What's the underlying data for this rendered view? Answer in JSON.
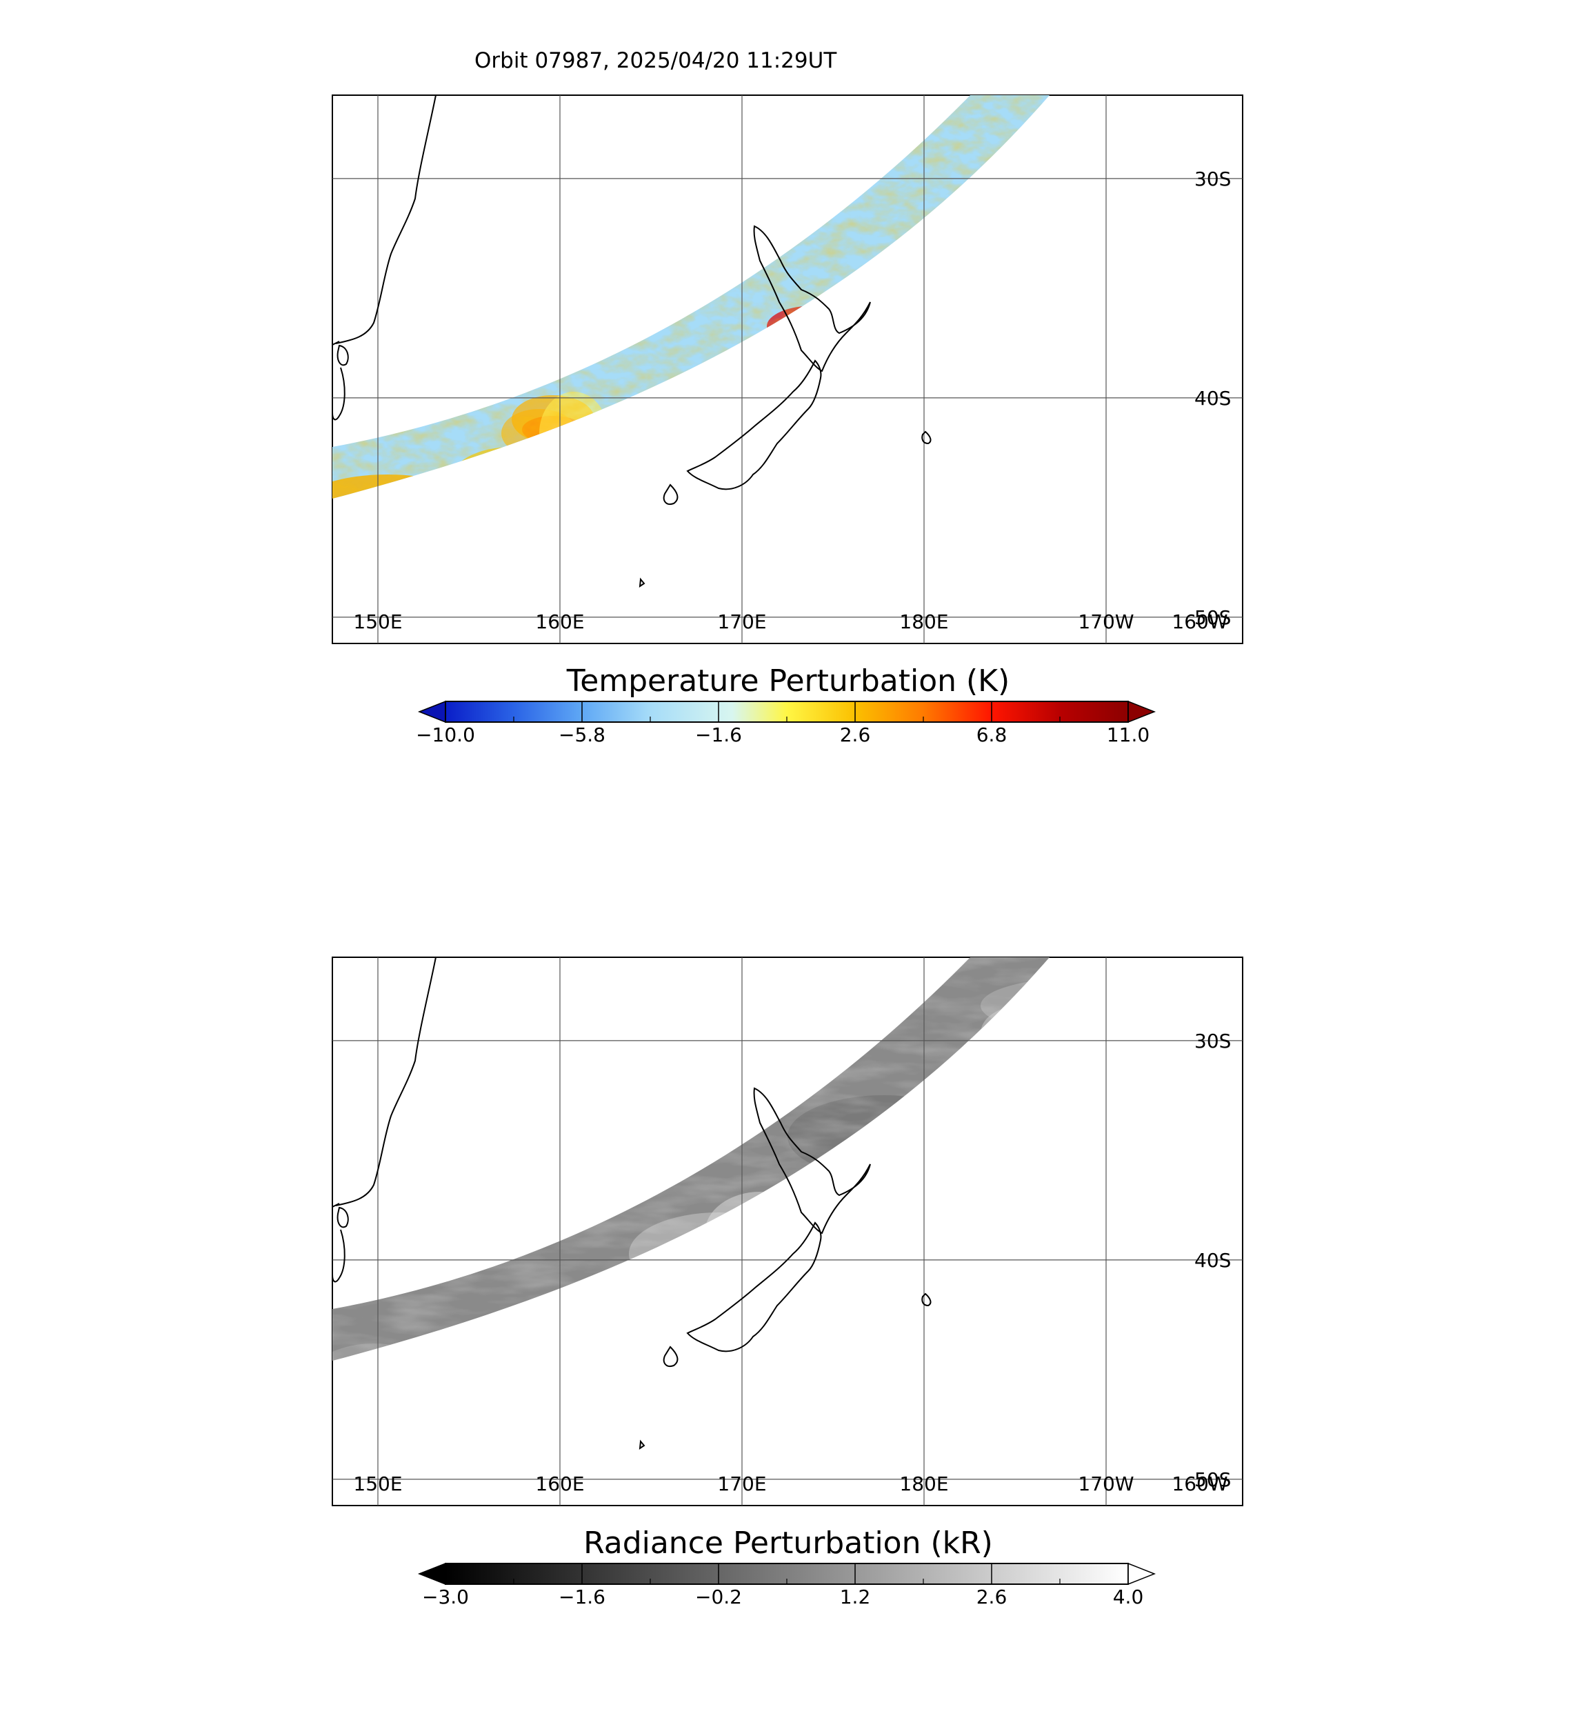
{
  "header": {
    "title": "Orbit 07987, 2025/04/20 11:29UT"
  },
  "map": {
    "lon_range": [
      147.5,
      197.5
    ],
    "lat_range": [
      -51.2,
      -26.2
    ],
    "lon_ticks": [
      {
        "lon": 150,
        "label": "150E"
      },
      {
        "lon": 160,
        "label": "160E"
      },
      {
        "lon": 170,
        "label": "170E"
      },
      {
        "lon": 180,
        "label": "180E"
      },
      {
        "lon": 190,
        "label": "170W"
      },
      {
        "lon": 200,
        "label": "160W"
      }
    ],
    "lat_ticks": [
      {
        "lat": -30,
        "label": "30S"
      },
      {
        "lat": -40,
        "label": "40S"
      },
      {
        "lat": -50,
        "label": "50S"
      }
    ]
  },
  "panels": [
    {
      "id": "temperature",
      "colorbar": {
        "title": "Temperature Perturbation (K)",
        "ticks": [
          "-10.0",
          "-5.8",
          "-1.6",
          "2.6",
          "6.8",
          "11.0"
        ],
        "min": -10.0,
        "max": 11.0,
        "low_color": "#0a14b4",
        "high_color": "#8c0000",
        "stops": [
          "#0a1ec8",
          "#2a63e6",
          "#5fa8f5",
          "#a6dcf8",
          "#d8f6f0",
          "#fff645",
          "#fbc000",
          "#ff7a00",
          "#ff1500",
          "#b80000",
          "#8c0000"
        ]
      }
    },
    {
      "id": "radiance",
      "colorbar": {
        "title": "Radiance Perturbation (kR)",
        "ticks": [
          "-3.0",
          "-1.6",
          "-0.2",
          "1.2",
          "2.6",
          "4.0"
        ],
        "min": -3.0,
        "max": 4.0,
        "low_color": "#000000",
        "high_color": "#ffffff",
        "stops": [
          "#000000",
          "#ffffff"
        ]
      }
    }
  ]
}
